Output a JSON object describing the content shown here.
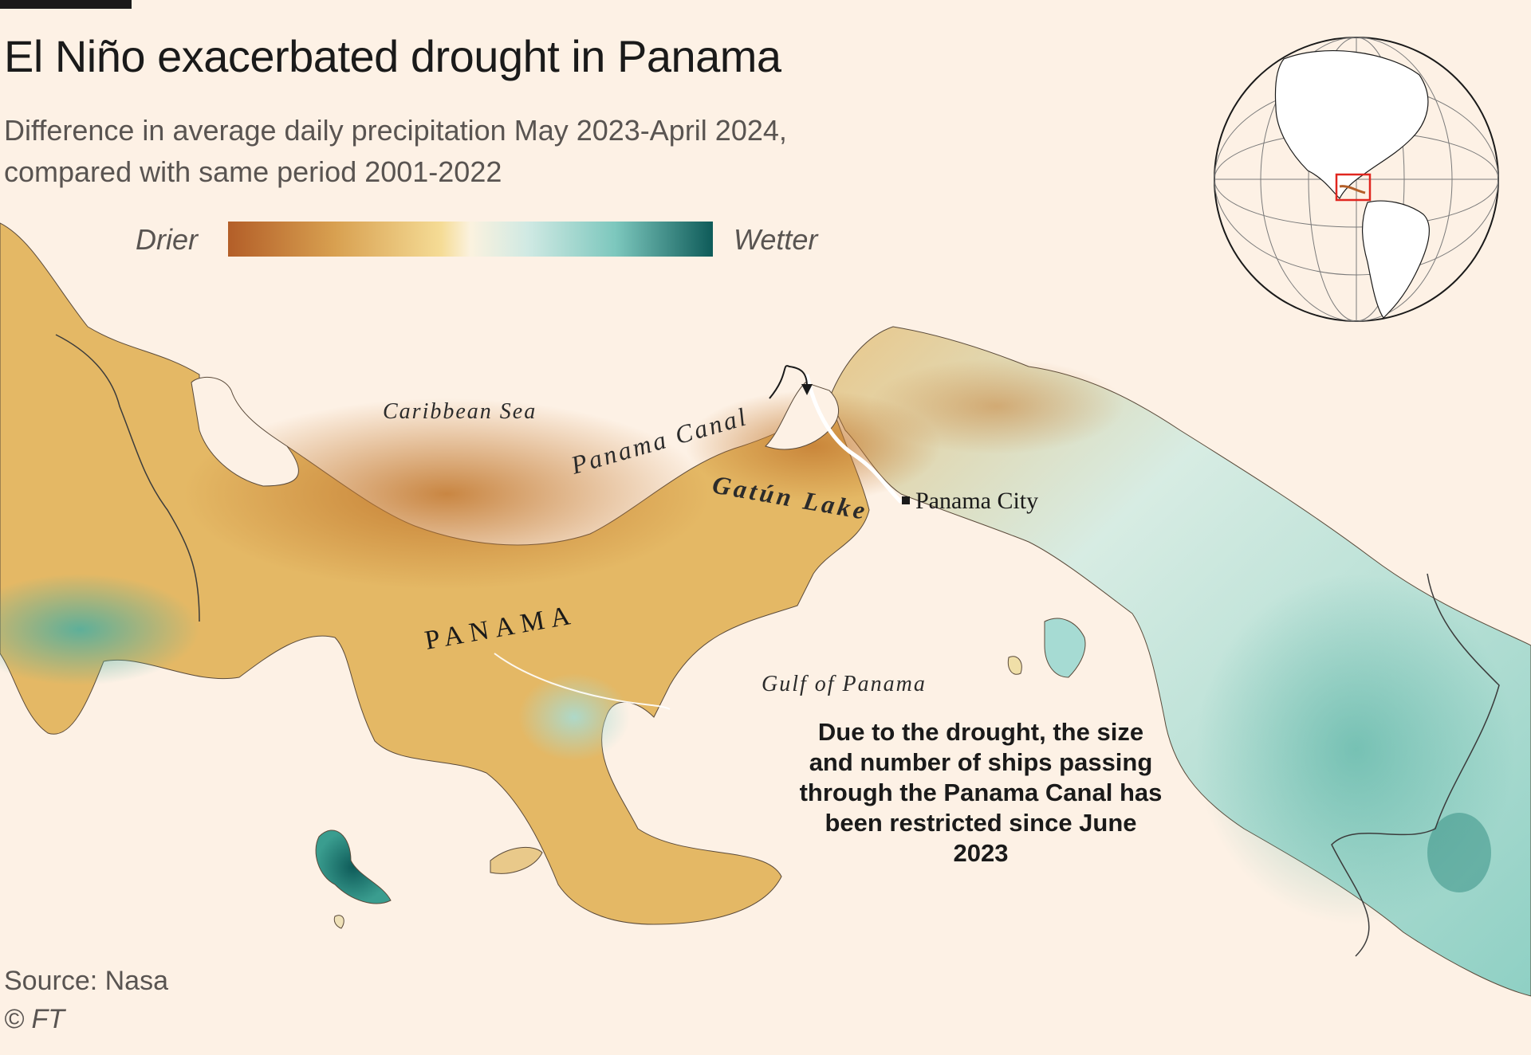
{
  "title": "El Niño exacerbated drought in Panama",
  "subtitle": "Difference in average daily precipitation May 2023-April 2024, compared with same period 2001-2022",
  "legend": {
    "low_label": "Drier",
    "high_label": "Wetter",
    "colors": [
      "#b35e28",
      "#d8a050",
      "#f5dc96",
      "#fbf2df",
      "#cfe9e3",
      "#7cc7bd",
      "#0e5b59"
    ]
  },
  "map": {
    "labels": {
      "caribbean_sea": "Caribbean Sea",
      "panama_canal": "Panama Canal",
      "gatun_lake": "Gatún Lake",
      "panama_city": "Panama City",
      "country": "PANAMA",
      "gulf_of_panama": "Gulf of Panama"
    },
    "colors": {
      "sea": "#fdf1e5",
      "dry": "#d9a04a",
      "wet": "#7cc7bd",
      "very_wet": "#0e5b59"
    }
  },
  "annotation": "Due to the drought, the size and number of ships passing through the Panama Canal has been restricted since June 2023",
  "locator": {
    "icon": "globe-locator-icon",
    "highlight_color": "#e0261f"
  },
  "source": "Source: Nasa",
  "copyright": "© FT"
}
